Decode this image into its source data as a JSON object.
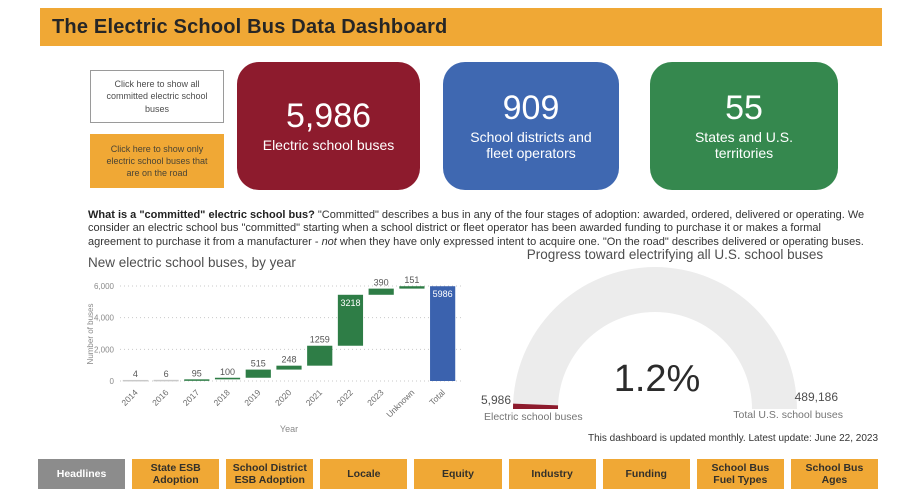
{
  "header": {
    "title": "The Electric School Bus Data Dashboard"
  },
  "buttons": {
    "show_all": "Click here to show all committed electric school buses",
    "show_on_road": "Click here to show only electric school buses that are on the road"
  },
  "stat_cards": [
    {
      "value": "5,986",
      "label": "Electric school buses",
      "color": "#8D1B2D"
    },
    {
      "value": "909",
      "label": "School districts and fleet operators",
      "color": "#3F68B1"
    },
    {
      "value": "55",
      "label": "States and U.S. territories",
      "color": "#35884E"
    }
  ],
  "explainer": {
    "lead": "What is a \"committed\" electric school bus?",
    "body_1": " \"Committed\" describes a bus in any of the four stages of adoption: awarded, ordered, delivered or operating. We consider an electric school bus \"committed\" starting when a school district or fleet operator has been awarded funding to purchase it or makes a formal agreement to purchase it from a manufacturer - ",
    "italic": "not",
    "body_2": " when they have only expressed intent to acquire one. \"On the road\" describes delivered or operating buses."
  },
  "chart_data": [
    {
      "type": "bar",
      "subtype": "waterfall",
      "title": "New electric school buses, by year",
      "xlabel": "Year",
      "ylabel": "Number of buses",
      "categories": [
        "2014",
        "2016",
        "2017",
        "2018",
        "2019",
        "2020",
        "2021",
        "2022",
        "2023",
        "Unknown",
        "Total"
      ],
      "values": [
        4,
        6,
        95,
        100,
        515,
        248,
        1259,
        3218,
        390,
        151,
        5986
      ],
      "total_category": "Total",
      "ylim": [
        0,
        6000
      ],
      "yticks": [
        "0",
        "2,000",
        "4,000",
        "6,000"
      ],
      "grid": "dotted",
      "bar_color": "#2E7D46",
      "total_color": "#3B62AE",
      "tiny_bar_color": "#c9c9c9"
    },
    {
      "type": "gauge",
      "title": "Progress toward electrifying all U.S. school buses",
      "value_pct": "1.2%",
      "left_value": "5,986",
      "left_label": "Electric school buses",
      "right_value": "489,186",
      "right_label": "Total U.S. school buses",
      "fill_color": "#8D1B2D",
      "track_color": "#ECECEC"
    }
  ],
  "footnote": "This dashboard is updated monthly. Latest update: June 22, 2023",
  "tabs": [
    {
      "label": "Headlines",
      "active": true
    },
    {
      "label": "State ESB Adoption",
      "active": false
    },
    {
      "label": "School District ESB Adoption",
      "active": false
    },
    {
      "label": "Locale",
      "active": false
    },
    {
      "label": "Equity",
      "active": false
    },
    {
      "label": "Industry",
      "active": false
    },
    {
      "label": "Funding",
      "active": false
    },
    {
      "label": "School Bus Fuel Types",
      "active": false
    },
    {
      "label": "School Bus Ages",
      "active": false
    }
  ]
}
